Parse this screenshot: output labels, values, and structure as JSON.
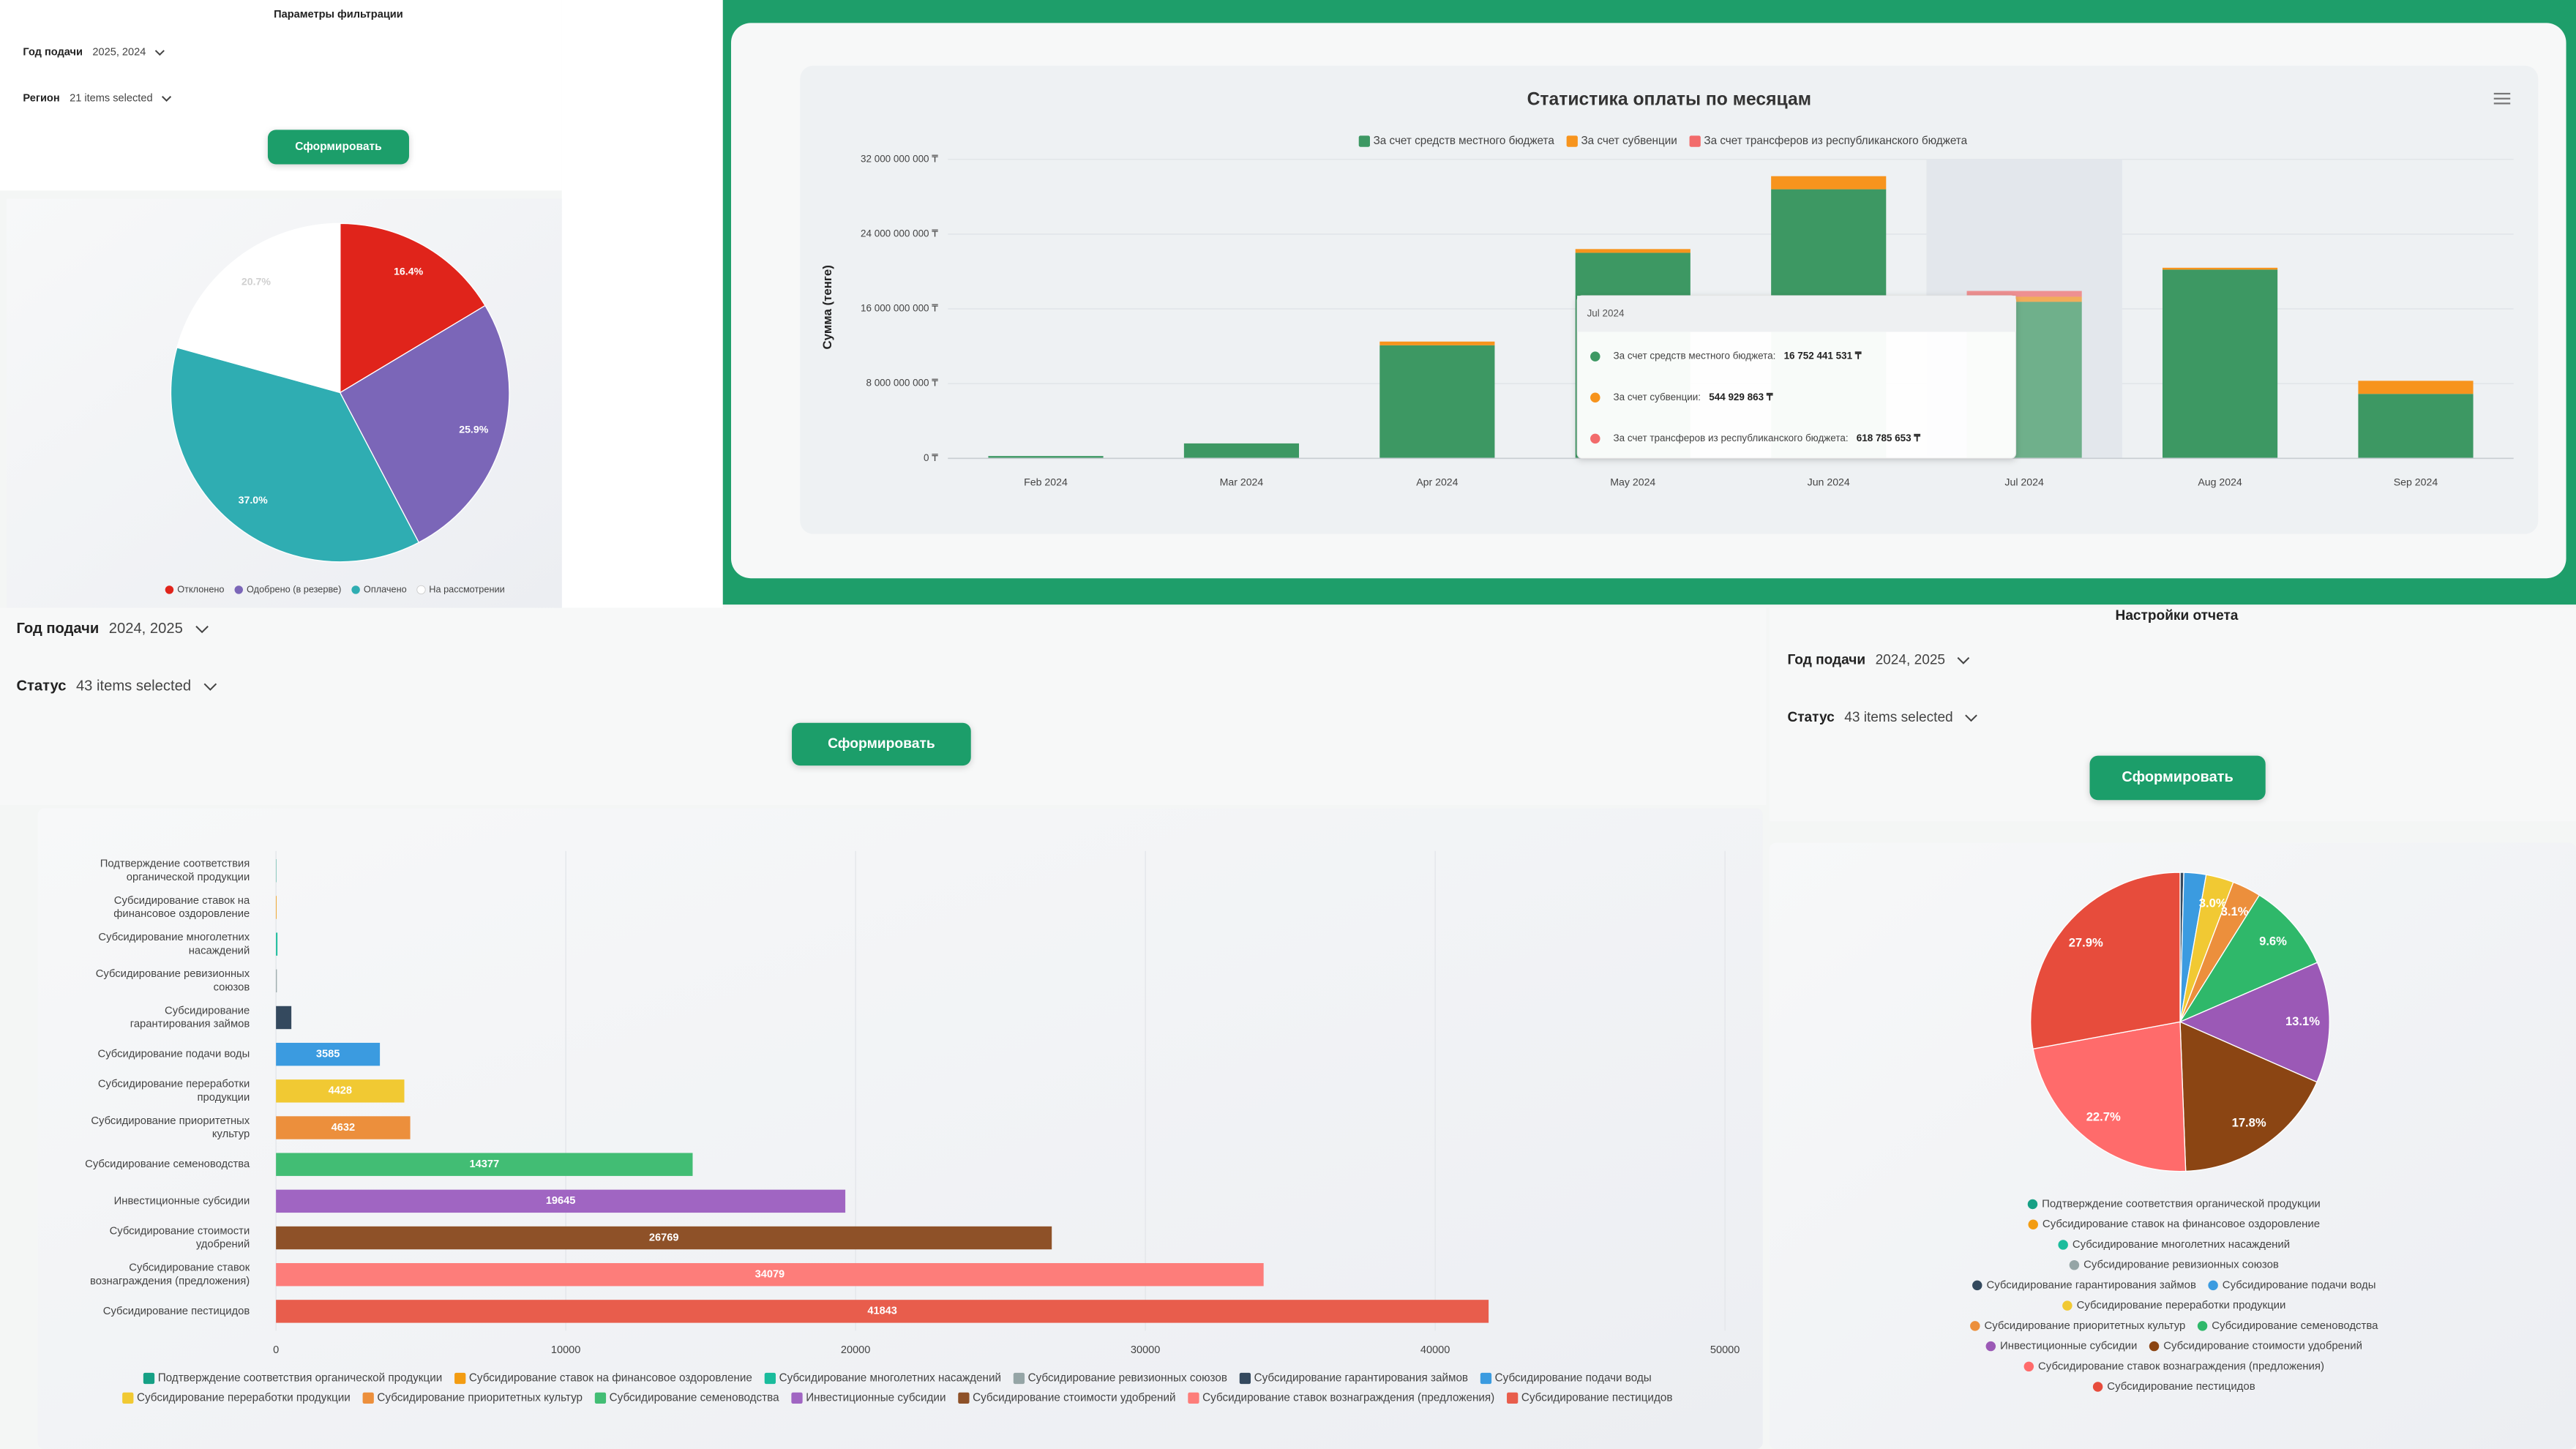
{
  "filters": [
    {
      "title": "Параметры фильтрации",
      "fields": [
        {
          "label": "Год подачи",
          "value": "2025, 2024"
        },
        {
          "label": "Регион",
          "value": "21 items selected"
        }
      ],
      "button": "Сформировать"
    },
    {
      "fields": [
        {
          "label": "Год подачи",
          "value": "2024, 2025"
        },
        {
          "label": "Статус",
          "value": "43 items selected"
        }
      ],
      "button": "Сформировать"
    },
    {
      "title": "Настройки отчета",
      "fields": [
        {
          "label": "Год подачи",
          "value": "2024, 2025"
        },
        {
          "label": "Статус",
          "value": "43 items selected"
        }
      ],
      "button": "Сформировать"
    }
  ],
  "chart_data": [
    {
      "type": "pie",
      "categories": [
        "Отклонено",
        "Одобрено (в резерве)",
        "Оплачено",
        "На рассмотрении"
      ],
      "values": [
        16.4,
        25.9,
        37.0,
        20.7
      ],
      "value_labels": [
        "16.4%",
        "25.9%",
        "37.0%",
        "20.7%"
      ],
      "colors": [
        "#e0241b",
        "#7b66b8",
        "#2fadb2",
        "#ffffff"
      ]
    },
    {
      "type": "stacked_bar",
      "title": "Статистика оплаты по месяцам",
      "ylabel": "Сумма (тенге)",
      "categories": [
        "Feb 2024",
        "Mar 2024",
        "Apr 2024",
        "May 2024",
        "Jun 2024",
        "Jul 2024",
        "Aug 2024",
        "Sep 2024"
      ],
      "series": [
        {
          "name": "За счет средств местного бюджета",
          "color": "#3d9863",
          "values": [
            250000000,
            1600000000,
            12100000000,
            22000000000,
            28800000000,
            16752441531,
            20200000000,
            6900000000
          ]
        },
        {
          "name": "За счет субвенции",
          "color": "#f7941d",
          "values": [
            0,
            0,
            400000000,
            400000000,
            1400000000,
            544929863,
            200000000,
            1400000000
          ]
        },
        {
          "name": "За счет трансферов из республиканского бюджета",
          "color": "#f26b6b",
          "values": [
            0,
            0,
            0,
            0,
            0,
            618785653,
            0,
            0
          ]
        }
      ],
      "ylim": [
        0,
        32000000000
      ],
      "yticks": [
        {
          "value": 0,
          "label": "0 ₸"
        },
        {
          "value": 8000000000,
          "label": "8 000 000 000 ₸"
        },
        {
          "value": 16000000000,
          "label": "16 000 000 000 ₸"
        },
        {
          "value": 24000000000,
          "label": "24 000 000 000 ₸"
        },
        {
          "value": 32000000000,
          "label": "32 000 000 000 ₸"
        }
      ],
      "grid": true,
      "tooltip": {
        "title": "Jul 2024",
        "rows": [
          {
            "label": "За счет средств местного бюджета:",
            "value": "16 752 441 531 ₸"
          },
          {
            "label": "За счет субвенции:",
            "value": "544 929 863 ₸"
          },
          {
            "label": "За счет трансферов из республиканского бюджета:",
            "value": "618 785 653 ₸"
          }
        ]
      }
    },
    {
      "type": "hbar",
      "categories": [
        "Подтверждение соответствия органической продукции",
        "Субсидирование ставок на финансовое оздоровление",
        "Субсидирование многолетних насаждений",
        "Субсидирование ревизионных союзов",
        "Субсидирование гарантирования займов",
        "Субсидирование подачи воды",
        "Субсидирование переработки продукции",
        "Субсидирование приоритетных культур",
        "Субсидирование семеноводства",
        "Инвестиционные субсидии",
        "Субсидирование стоимости удобрений",
        "Субсидирование ставок вознаграждения (предложения)",
        "Субсидирование пестицидов"
      ],
      "values": [
        10,
        20,
        50,
        30,
        530,
        3585,
        4428,
        4632,
        14377,
        19645,
        26769,
        34079,
        41843
      ],
      "colors": [
        "#16a085",
        "#f39c12",
        "#1abc9c",
        "#95a5a6",
        "#34495e",
        "#3b9be0",
        "#f1c933",
        "#ec8f3c",
        "#42bd74",
        "#a065c2",
        "#8e5128",
        "#fd7d7a",
        "#e85d4c"
      ],
      "xlim": [
        0,
        50000
      ],
      "xticks": [
        0,
        10000,
        20000,
        30000,
        40000,
        50000
      ],
      "grid": true
    },
    {
      "type": "pie",
      "categories": [
        "Подтверждение соответствия органической продукции",
        "Субсидирование ставок на финансовое оздоровление",
        "Субсидирование многолетних насаждений",
        "Субсидирование ревизионных союзов",
        "Субсидирование гарантирования займов",
        "Субсидирование подачи воды",
        "Субсидирование переработки продукции",
        "Субсидирование приоритетных культур",
        "Субсидирование семеноводства",
        "Инвестиционные субсидии",
        "Субсидирование стоимости удобрений",
        "Субсидирование ставок вознаграждения (предложения)",
        "Субсидирование пестицидов"
      ],
      "values": [
        0.0,
        0.0,
        0.0,
        0.0,
        0.4,
        2.4,
        3.0,
        3.1,
        9.6,
        13.1,
        17.8,
        22.7,
        27.9
      ],
      "value_labels": [
        null,
        null,
        null,
        null,
        null,
        null,
        "3.0%",
        "3.1%",
        "9.6%",
        "13.1%",
        "17.8%",
        "22.7%",
        "27.9%"
      ],
      "colors": [
        "#16a085",
        "#f39c12",
        "#1abc9c",
        "#95a5a6",
        "#34495e",
        "#3b9be0",
        "#f1c933",
        "#ec8f3c",
        "#2fb86a",
        "#9b59b6",
        "#8b4513",
        "#ff6b6b",
        "#e74c3c"
      ]
    }
  ]
}
